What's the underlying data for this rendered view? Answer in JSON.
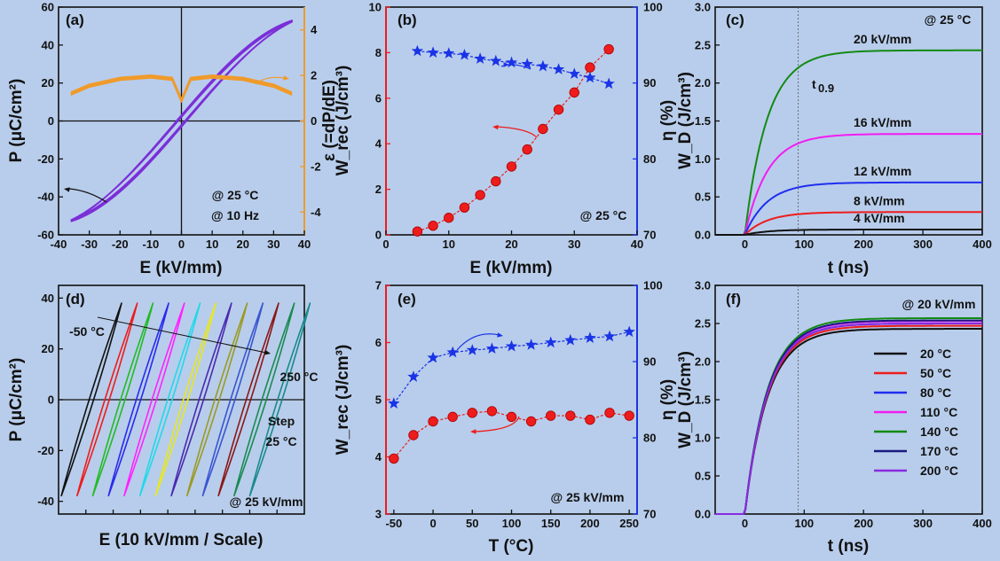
{
  "chart_data": [
    {
      "panel": "(a)",
      "type": "line",
      "xlabel": "E (kV/mm)",
      "ylabel": "P (μC/cm²)",
      "y2label": "ε (=dP/dE)",
      "xlim": [
        -40,
        40
      ],
      "ylim": [
        -60,
        60
      ],
      "y2lim": [
        -5,
        5
      ],
      "xticks": [
        "-40",
        "-30",
        "-20",
        "-10",
        "0",
        "10",
        "20",
        "30",
        "40"
      ],
      "yticks": [
        "-60",
        "-40",
        "-20",
        "0",
        "20",
        "40",
        "60"
      ],
      "y2ticks": [
        "-4",
        "-2",
        "0",
        "2",
        "4"
      ],
      "annotations": [
        "@ 25 °C",
        "@ 10 Hz"
      ],
      "colors": {
        "loop": "#7b2fd8",
        "permittivity": "#f09a2a",
        "y2axis": "#f09a2a"
      },
      "series": [
        {
          "kind": "P-E loop",
          "emax": 36,
          "pmax": 53,
          "remanent": 2.5
        },
        {
          "kind": "permittivity",
          "x": [
            -36,
            -30,
            -20,
            -10,
            -3,
            0,
            3,
            10,
            20,
            30,
            36
          ],
          "y": [
            1.2,
            1.55,
            1.85,
            1.95,
            1.85,
            0.9,
            1.85,
            1.95,
            1.85,
            1.55,
            1.2
          ]
        }
      ]
    },
    {
      "panel": "(b)",
      "type": "scatter",
      "xlabel": "E (kV/mm)",
      "ylabel": "W_rec (J/cm³)",
      "y2label": "η (%)",
      "xlim": [
        0,
        40
      ],
      "ylim": [
        0,
        10
      ],
      "y2lim": [
        70,
        100
      ],
      "xticks": [
        "0",
        "10",
        "20",
        "30",
        "40"
      ],
      "yticks": [
        "0",
        "2",
        "4",
        "6",
        "8",
        "10"
      ],
      "y2ticks": [
        "70",
        "80",
        "90",
        "100"
      ],
      "annotations": [
        "@ 25 °C"
      ],
      "colors": {
        "wrec": "#ee1c1c",
        "eta": "#1a33e6"
      },
      "series": [
        {
          "kind": "W_rec",
          "x": [
            5,
            7.5,
            10,
            12.5,
            15,
            17.5,
            20,
            22.5,
            25,
            27.5,
            30,
            32.5,
            35.5
          ],
          "y": [
            0.15,
            0.4,
            0.75,
            1.2,
            1.75,
            2.35,
            3.0,
            3.75,
            4.65,
            5.5,
            6.25,
            7.35,
            8.15
          ]
        },
        {
          "kind": "eta",
          "x": [
            5,
            7.5,
            10,
            12.5,
            15,
            17.5,
            20,
            22.5,
            25,
            27.5,
            30,
            32.5,
            35.5
          ],
          "y": [
            94.2,
            94.0,
            93.9,
            93.7,
            93.2,
            92.9,
            92.7,
            92.5,
            92.2,
            91.8,
            91.2,
            90.7,
            89.9
          ]
        }
      ]
    },
    {
      "panel": "(c)",
      "type": "line",
      "xlabel": "t (ns)",
      "ylabel": "W_D (J/cm³)",
      "xlim": [
        -50,
        400
      ],
      "ylim": [
        0,
        3.0
      ],
      "xticks": [
        "0",
        "100",
        "200",
        "300",
        "400"
      ],
      "yticks": [
        "0.0",
        "0.5",
        "1.0",
        "1.5",
        "2.0",
        "2.5",
        "3.0"
      ],
      "annotations": [
        "@ 25 °C",
        "t0.9"
      ],
      "t09": 90,
      "series": [
        {
          "name": "20 kV/mm",
          "plateau": 2.43,
          "color": "#138a13"
        },
        {
          "name": "16 kV/mm",
          "plateau": 1.33,
          "color": "#f21cf2"
        },
        {
          "name": "12 kV/mm",
          "plateau": 0.69,
          "color": "#1f2ef0"
        },
        {
          "name": "8 kV/mm",
          "plateau": 0.3,
          "color": "#ee1c1c"
        },
        {
          "name": "4 kV/mm",
          "plateau": 0.07,
          "color": "#111111"
        }
      ]
    },
    {
      "panel": "(d)",
      "type": "line",
      "xlabel": "E (10 kV/mm / Scale)",
      "ylabel": "P (μC/cm²)",
      "ylim": [
        -45,
        45
      ],
      "yticks": [
        "-40",
        "-20",
        "0",
        "20",
        "40"
      ],
      "annotations": [
        "-50 °C",
        "250 °C",
        "Step",
        "25 °C",
        "@ 25 kV/mm"
      ],
      "series": [
        {
          "color": "#111111"
        },
        {
          "color": "#ee1c1c"
        },
        {
          "color": "#22bb22"
        },
        {
          "color": "#2a2aee"
        },
        {
          "color": "#ff22ff"
        },
        {
          "color": "#22d8e8"
        },
        {
          "color": "#e8e81a"
        },
        {
          "color": "#4a2ab0"
        },
        {
          "color": "#9a9a22"
        },
        {
          "color": "#3a55d0"
        },
        {
          "color": "#8a1818"
        },
        {
          "color": "#1a8a50"
        },
        {
          "color": "#1a8a8a"
        }
      ]
    },
    {
      "panel": "(e)",
      "type": "scatter",
      "xlabel": "T (°C)",
      "ylabel": "W_rec (J/cm³)",
      "y2label": "η (%)",
      "xlim": [
        -60,
        260
      ],
      "ylim": [
        3,
        7
      ],
      "y2lim": [
        70,
        100
      ],
      "xticks": [
        "-50",
        "0",
        "50",
        "100",
        "150",
        "200",
        "250"
      ],
      "xtick_values": [
        -50,
        0,
        50,
        100,
        150,
        200,
        250
      ],
      "ytick_values": [
        3,
        4,
        5,
        6,
        7
      ],
      "yticks": [
        "3",
        "4",
        "5",
        "6",
        "7"
      ],
      "y2ticks": [
        "70",
        "80",
        "90",
        "100"
      ],
      "annotations": [
        "@ 25 kV/mm"
      ],
      "colors": {
        "wrec": "#ee1c1c",
        "eta": "#1a33e6"
      },
      "series": [
        {
          "kind": "W_rec",
          "x": [
            -50,
            -25,
            0,
            25,
            50,
            75,
            100,
            125,
            150,
            175,
            200,
            225,
            250
          ],
          "y": [
            3.97,
            4.38,
            4.62,
            4.7,
            4.77,
            4.8,
            4.7,
            4.62,
            4.72,
            4.72,
            4.65,
            4.77,
            4.72
          ]
        },
        {
          "kind": "eta",
          "x": [
            -50,
            -25,
            0,
            25,
            50,
            75,
            100,
            125,
            150,
            175,
            200,
            225,
            250
          ],
          "y": [
            84.5,
            88.0,
            90.5,
            91.2,
            91.5,
            91.7,
            92.0,
            92.2,
            92.5,
            92.8,
            93.1,
            93.3,
            93.9
          ]
        }
      ]
    },
    {
      "panel": "(f)",
      "type": "line",
      "xlabel": "t (ns)",
      "ylabel": "W_D (J/cm³)",
      "xlim": [
        -50,
        400
      ],
      "ylim": [
        0,
        3.0
      ],
      "xticks": [
        "0",
        "100",
        "200",
        "300",
        "400"
      ],
      "yticks": [
        "0.0",
        "0.5",
        "1.0",
        "1.5",
        "2.0",
        "2.5",
        "3.0"
      ],
      "annotations": [
        "@ 20 kV/mm"
      ],
      "t09": 90,
      "series": [
        {
          "name": "20 °C",
          "plateau": 2.43,
          "color": "#111111"
        },
        {
          "name": "50 °C",
          "plateau": 2.47,
          "color": "#ee1c1c"
        },
        {
          "name": "80 °C",
          "plateau": 2.5,
          "color": "#1f2ef0"
        },
        {
          "name": "110 °C",
          "plateau": 2.53,
          "color": "#f21cf2"
        },
        {
          "name": "140 °C",
          "plateau": 2.57,
          "color": "#138a13"
        },
        {
          "name": "170 °C",
          "plateau": 2.54,
          "color": "#1a1a80"
        },
        {
          "name": "200 °C",
          "plateau": 2.5,
          "color": "#8a2ae0"
        }
      ]
    }
  ]
}
